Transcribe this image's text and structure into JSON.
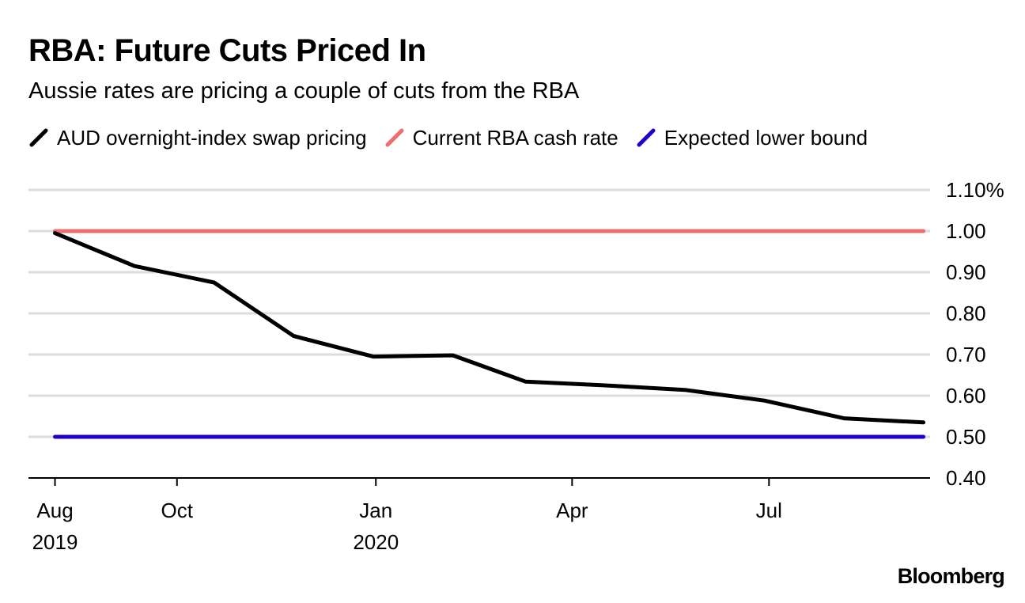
{
  "chart_data": {
    "type": "line",
    "title": "RBA: Future Cuts Priced In",
    "subtitle": "Aussie rates are pricing a couple of cuts from the RBA",
    "legend": [
      {
        "name": "AUD overnight-index swap pricing",
        "color": "#000000"
      },
      {
        "name": "Current RBA cash rate",
        "color": "#ee6d6d"
      },
      {
        "name": "Expected lower bound",
        "color": "#2200cc"
      }
    ],
    "series": [
      {
        "name": "AUD overnight-index swap pricing",
        "color": "#000000",
        "x": [
          0.0,
          1.2,
          2.4,
          3.6,
          4.8,
          6.0,
          7.1,
          8.3,
          9.5,
          10.7,
          11.9,
          13.1
        ],
        "values": [
          0.995,
          0.915,
          0.875,
          0.745,
          0.695,
          0.698,
          0.634,
          0.625,
          0.614,
          0.588,
          0.545,
          0.535
        ]
      },
      {
        "name": "Current RBA cash rate",
        "color": "#ee6d6d",
        "x": [
          0.0,
          13.1
        ],
        "values": [
          1.0,
          1.0
        ]
      },
      {
        "name": "Expected lower bound",
        "color": "#2200cc",
        "x": [
          0.0,
          13.1
        ],
        "values": [
          0.5,
          0.5
        ]
      }
    ],
    "y_ticks": [
      {
        "value": 1.1,
        "label": "1.10%"
      },
      {
        "value": 1.0,
        "label": "1.00"
      },
      {
        "value": 0.9,
        "label": "0.90"
      },
      {
        "value": 0.8,
        "label": "0.80"
      },
      {
        "value": 0.7,
        "label": "0.70"
      },
      {
        "value": 0.6,
        "label": "0.60"
      },
      {
        "value": 0.5,
        "label": "0.50"
      },
      {
        "value": 0.4,
        "label": "0.40"
      }
    ],
    "ylim": [
      0.4,
      1.1
    ],
    "xlim": [
      -0.4,
      13.2
    ],
    "x_ticks": [
      {
        "value": 0,
        "label": "Aug",
        "sublabel": "2019"
      },
      {
        "value": 1.84,
        "label": "Oct",
        "sublabel": ""
      },
      {
        "value": 4.84,
        "label": "Jan",
        "sublabel": "2020"
      },
      {
        "value": 7.8,
        "label": "Apr",
        "sublabel": ""
      },
      {
        "value": 10.77,
        "label": "Jul",
        "sublabel": ""
      }
    ],
    "grid": true,
    "xlabel": "",
    "ylabel": ""
  },
  "source": "Bloomberg"
}
